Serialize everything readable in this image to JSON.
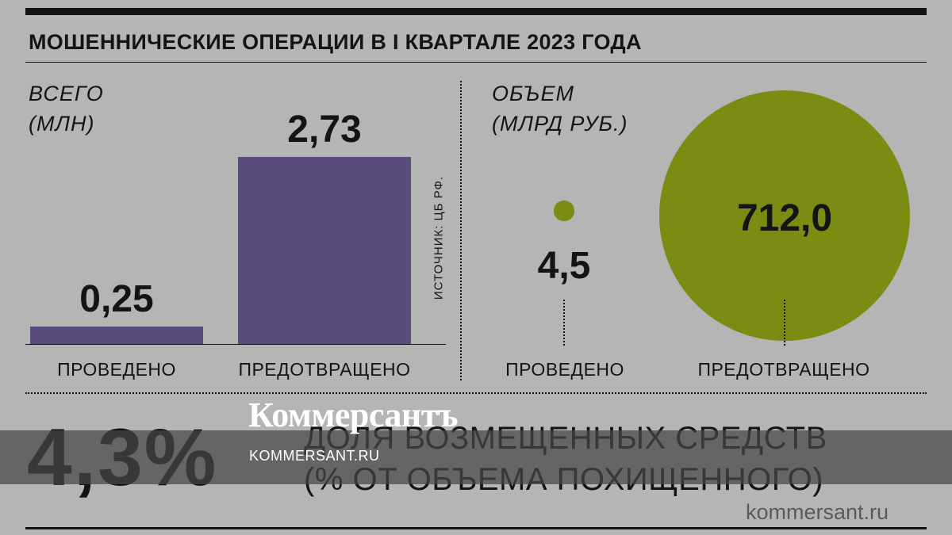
{
  "title": "МОШЕННИЧЕСКИЕ ОПЕРАЦИИ В I КВАРТАЛЕ 2023 ГОДА",
  "source": "ИСТОЧНИК: ЦБ РФ.",
  "colors": {
    "background": "#b5b5b5",
    "bar": "#5a4b7d",
    "bubble": "#7c8c13",
    "ink": "#141414"
  },
  "chart_data": [
    {
      "type": "bar",
      "title_line1": "ВСЕГО",
      "title_line2": "(МЛН)",
      "categories": [
        "ПРОВЕДЕНО",
        "ПРЕДОТВРАЩЕНО"
      ],
      "values": [
        0.25,
        2.73
      ],
      "value_labels": [
        "0,25",
        "2,73"
      ]
    },
    {
      "type": "scatter",
      "title_line1": "ОБЪЕМ",
      "title_line2": "(МЛРД РУБ.)",
      "categories": [
        "ПРОВЕДЕНО",
        "ПРЕДОТВРАЩЕНО"
      ],
      "values": [
        4.5,
        712.0
      ],
      "value_labels": [
        "4,5",
        "712,0"
      ]
    }
  ],
  "share": {
    "value": "4,3%",
    "label_line1": "ДОЛЯ ВОЗМЕЩЕННЫХ СРЕДСТВ",
    "label_line2": "(% ОТ ОБЪЕМА ПОХИЩЕННОГО)"
  },
  "watermark": {
    "brand": "Коммерсантъ",
    "url": "KOMMERSANT.RU"
  },
  "footer": {
    "site": "kommersant.ru"
  }
}
